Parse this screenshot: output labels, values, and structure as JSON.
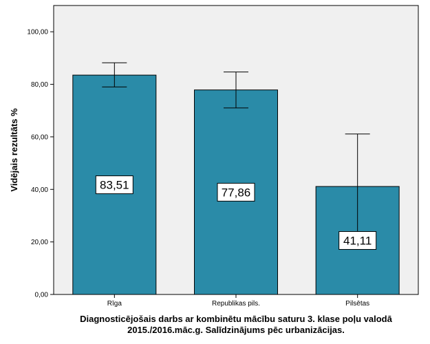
{
  "chart_data": {
    "type": "bar",
    "categories": [
      "Rīga",
      "Republikas pils.",
      "Pilsētas"
    ],
    "values": [
      83.51,
      77.86,
      41.11
    ],
    "data_labels": [
      "83,51",
      "77,86",
      "41,11"
    ],
    "error_bars": [
      {
        "low": 79.0,
        "high": 88.2
      },
      {
        "low": 71.0,
        "high": 84.7
      },
      {
        "low": 21.0,
        "high": 61.1
      }
    ],
    "ylabel": "Vidējais rezultāts %",
    "xlabel_lines": [
      "Diagnosticējošais darbs ar kombinētu mācību saturu 3. klase poļu valodā",
      "2015./2016.māc.g. Salīdzinājums pēc urbanizācijas."
    ],
    "ylim": [
      0,
      110
    ],
    "y_ticks": [
      0,
      20,
      40,
      60,
      80,
      100
    ],
    "y_tick_labels": [
      "0,00",
      "20,00",
      "40,00",
      "60,00",
      "80,00",
      "100,00"
    ],
    "grid": false,
    "colors": {
      "bar": "#2a8ba8",
      "plot_background": "#f0f0f0",
      "error_bar": "#000000"
    }
  }
}
